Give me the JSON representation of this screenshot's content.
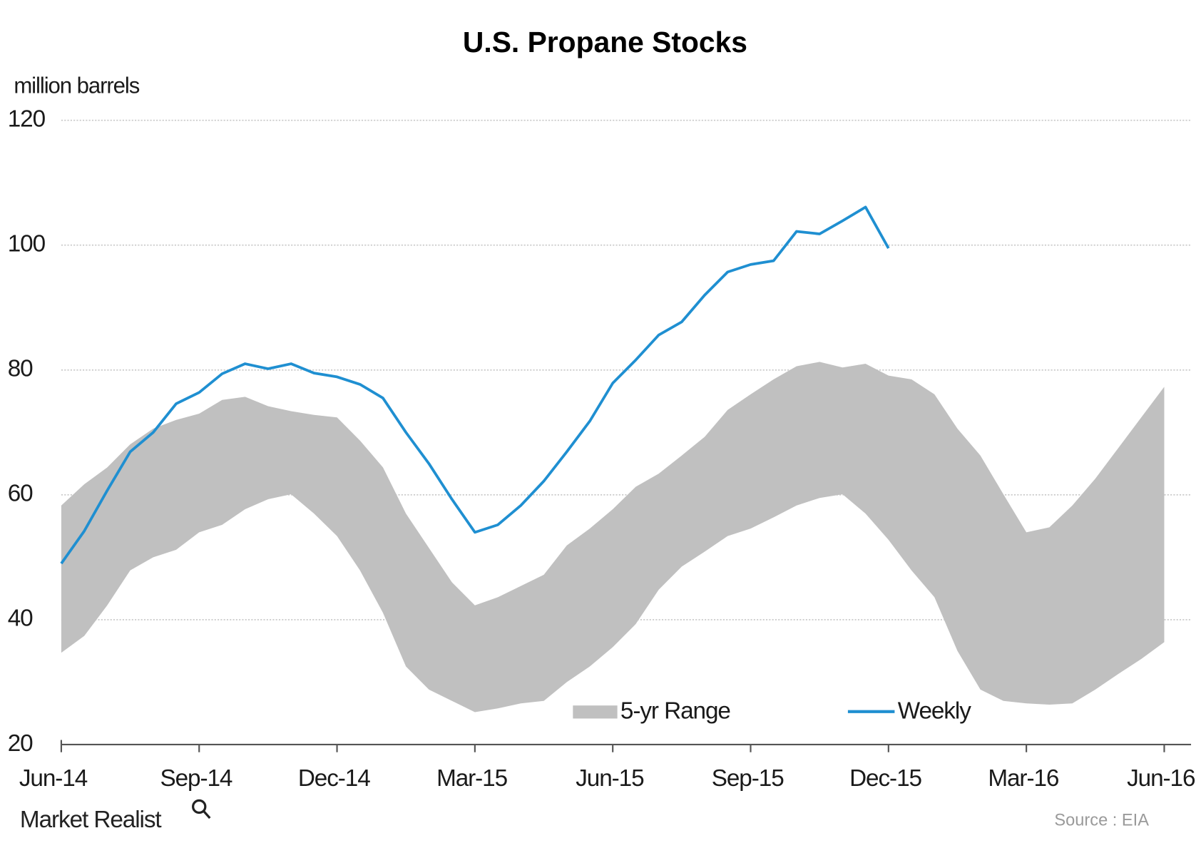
{
  "chart_data": {
    "type": "band-line",
    "title": "U.S. Propane Stocks",
    "ylabel": "million barrels",
    "source": "Source : EIA",
    "logo": "Market Realist",
    "categories": [
      "Jun-14",
      null,
      null,
      null,
      null,
      null,
      "Sep-14",
      null,
      null,
      null,
      null,
      null,
      "Dec-14",
      null,
      null,
      null,
      null,
      null,
      "Mar-15",
      null,
      null,
      null,
      null,
      null,
      "Jun-15",
      null,
      null,
      null,
      null,
      null,
      "Sep-15",
      null,
      null,
      null,
      null,
      null,
      "Dec-15",
      null,
      null,
      null,
      null,
      null,
      "Mar-16",
      null,
      null,
      null,
      null,
      null,
      "Jun-16"
    ],
    "ylim": [
      20,
      120
    ],
    "yticks": [
      20,
      40,
      60,
      80,
      100,
      120
    ],
    "grid": true,
    "legend": "bottom",
    "series": [
      {
        "name": "5-yr Range",
        "color": "#c0c0c0",
        "upper": [
          58.3,
          61.7,
          64.4,
          68.1,
          70.6,
          72,
          73,
          75.2,
          75.7,
          74.2,
          73.4,
          72.8,
          72.4,
          68.7,
          64.4,
          57,
          51.5,
          46,
          42.3,
          43.6,
          45.4,
          47.2,
          51.9,
          54.6,
          57.7,
          61.3,
          63.4,
          66.3,
          69.3,
          73.6,
          76.1,
          78.5,
          80.6,
          81.3,
          80.4,
          81,
          79.1,
          78.5,
          76.1,
          70.6,
          66.3,
          60.1,
          54,
          54.8,
          58.3,
          62.6,
          67.5,
          72.4,
          77.3
        ],
        "lower": [
          34.7,
          37.4,
          42.3,
          47.9,
          50,
          51.2,
          54,
          55.2,
          57.7,
          59.3,
          60.1,
          57,
          53.4,
          47.9,
          41.1,
          32.5,
          28.8,
          27,
          25.2,
          25.8,
          26.6,
          27,
          30,
          32.5,
          35.6,
          39.3,
          44.8,
          48.5,
          50.9,
          53.4,
          54.6,
          56.4,
          58.3,
          59.5,
          60.1,
          57,
          52.8,
          47.9,
          43.6,
          35,
          28.8,
          27,
          26.6,
          26.4,
          26.6,
          28.8,
          31.3,
          33.7,
          36.4
        ]
      },
      {
        "name": "Weekly",
        "color": "#1f8fd1",
        "values": [
          49,
          54.2,
          60.7,
          66.9,
          70,
          74.6,
          76.4,
          79.4,
          81,
          80.2,
          81,
          79.5,
          78.9,
          77.7,
          75.5,
          70,
          65,
          59.3,
          54,
          55.2,
          58.3,
          62.2,
          66.9,
          71.8,
          77.9,
          81.6,
          85.6,
          87.7,
          92,
          95.7,
          96.9,
          97.5,
          102.2,
          101.8,
          103.9,
          106.1,
          99.5,
          null,
          null,
          null,
          null,
          null,
          null,
          null,
          null,
          null,
          null,
          null,
          null
        ]
      }
    ]
  }
}
